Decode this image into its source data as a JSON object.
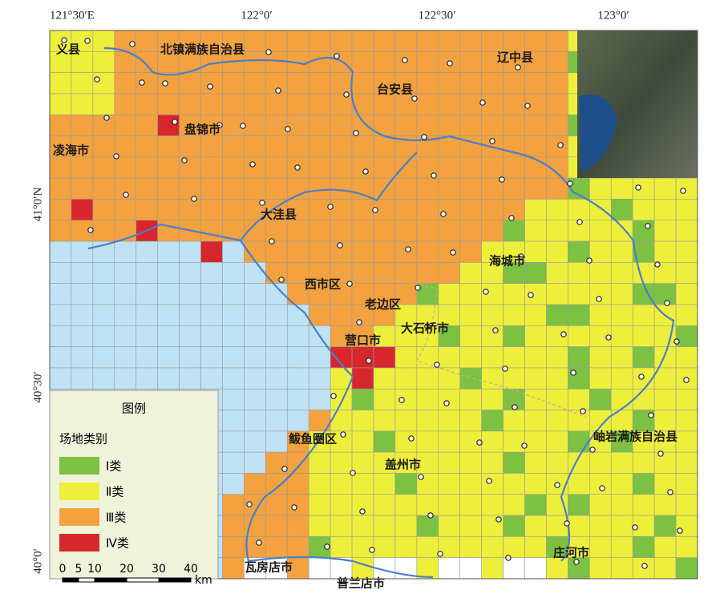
{
  "graticule": {
    "top": [
      "121°30′E",
      "122°0′",
      "122°30′",
      "123°0′"
    ],
    "left": [
      "41°0′N",
      "40°30′",
      "40°0′"
    ]
  },
  "legend": {
    "title": "图例",
    "subtitle": "场地类别",
    "items": [
      {
        "label": "Ⅰ类",
        "color": "#7cc142"
      },
      {
        "label": "Ⅱ类",
        "color": "#eeef3a"
      },
      {
        "label": "Ⅲ类",
        "color": "#f3a23f"
      },
      {
        "label": "Ⅳ类",
        "color": "#d8262d"
      }
    ]
  },
  "sea_color": "#bfe3f5",
  "scale": {
    "labels": [
      "0",
      "5",
      "10",
      "20",
      "30",
      "40"
    ],
    "unit": "km"
  },
  "places": [
    "北镇满族自治县",
    "义县",
    "凌海市",
    "盘锦市",
    "大洼县",
    "台安县",
    "辽中县",
    "海城市",
    "营口市",
    "大石桥市",
    "盖州市",
    "岫岩满族自治县",
    "瓦房店市",
    "普兰店市",
    "庄河市",
    "鲅鱼圈区",
    "老边区",
    "西市区"
  ]
}
